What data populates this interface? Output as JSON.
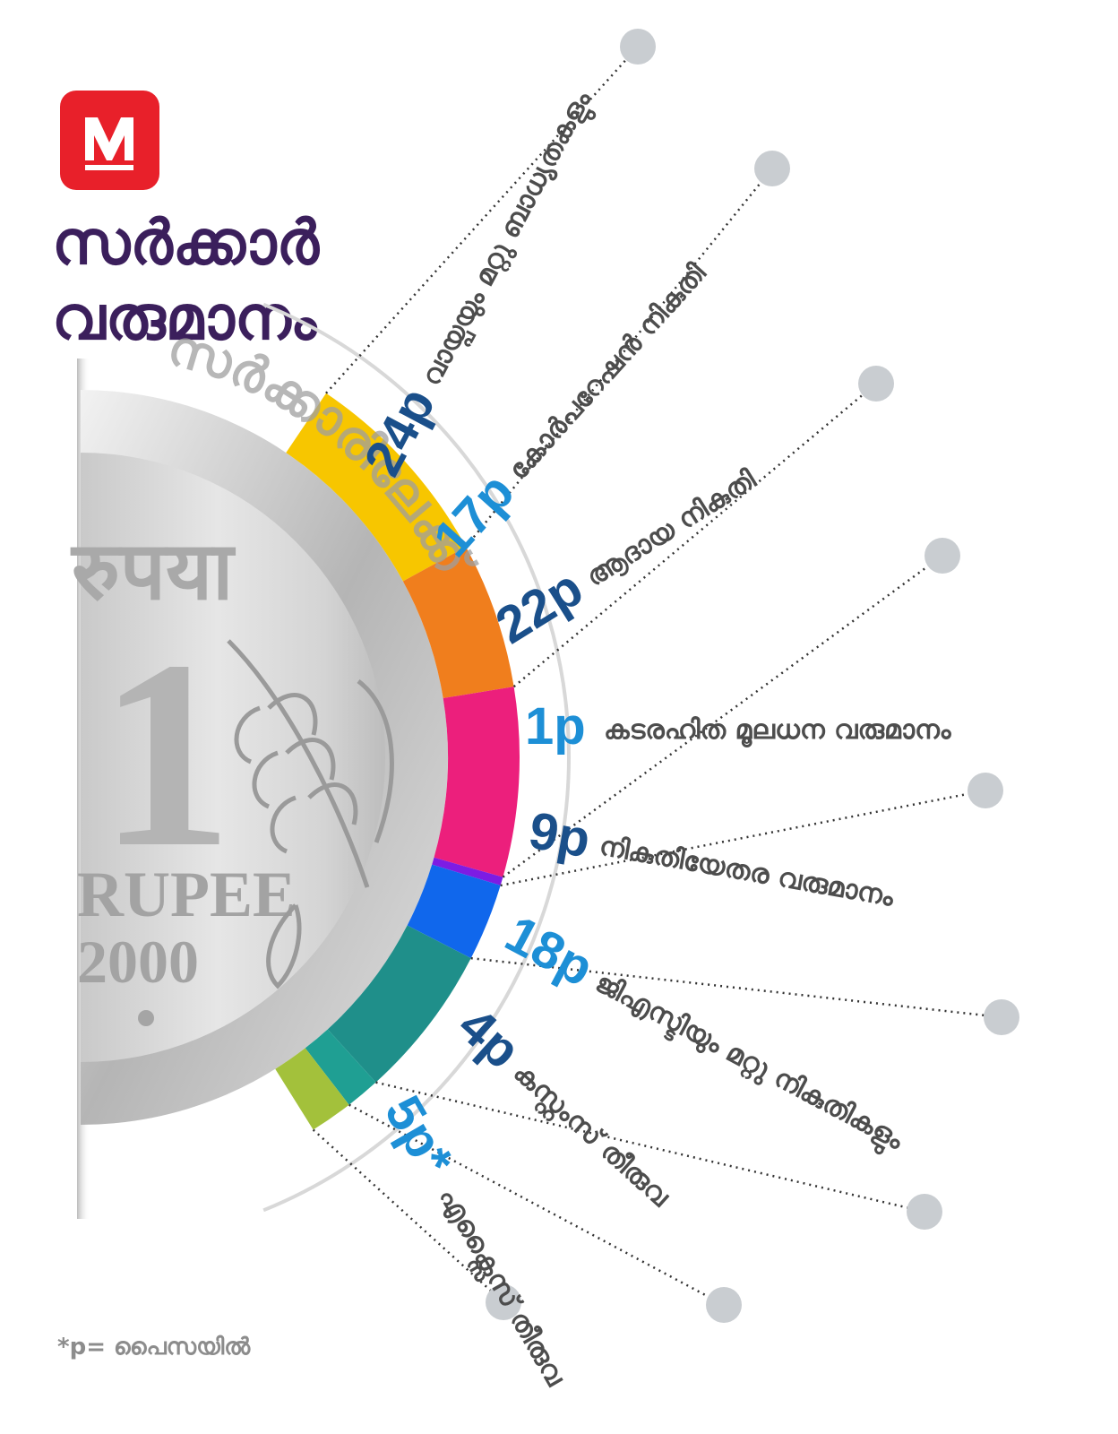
{
  "brand": {
    "logo_letter": "M",
    "logo_color": "#e8202a"
  },
  "title": {
    "line1": "സർക്കാർ",
    "line2": "വരുമാനം"
  },
  "coin": {
    "arc_text": "സർക്കാരിലേക്ക്",
    "face_text": "रुपया",
    "denomination": "1",
    "word": "RUPEE",
    "year": "2000"
  },
  "footnote": "*p=  പൈസയിൽ",
  "chart_data": {
    "type": "pie",
    "title": "സർക്കാർ വരുമാനം",
    "unit": "p",
    "segments": [
      {
        "value": "24p",
        "label": "വായ്പയും മറ്റു ബാധ്യതകളും",
        "color": "#f7c600",
        "value_color": "#1a4f8a"
      },
      {
        "value": "17p",
        "label": "കോർപറേഷൻ നികുതി",
        "color": "#f07e1d",
        "value_color": "#1d8fd6"
      },
      {
        "value": "22p",
        "label": "ആദായ നികുതി",
        "color": "#ec1f7c",
        "value_color": "#1a4f8a"
      },
      {
        "value": "1p",
        "label": "കടരഹിത മൂലധന വരുമാനം",
        "color": "#7d1ce3",
        "value_color": "#1d8fd6"
      },
      {
        "value": "9p",
        "label": "നികുതിയേതര വരുമാനം",
        "color": "#1067ec",
        "value_color": "#1a4f8a"
      },
      {
        "value": "18p",
        "label": "ജിഎസ്ടിയും മറ്റു നികുതികളും",
        "color": "#1f8f8a",
        "value_color": "#1d8fd6"
      },
      {
        "value": "4p",
        "label": "കസ്റ്റംസ് തീരുവ",
        "color": "#1f9f93",
        "value_color": "#1a4f8a"
      },
      {
        "value": "5p*",
        "label": "എക്സൈസ് തീരുവ",
        "color": "#a3c13b",
        "value_color": "#1d8fd6"
      }
    ]
  }
}
